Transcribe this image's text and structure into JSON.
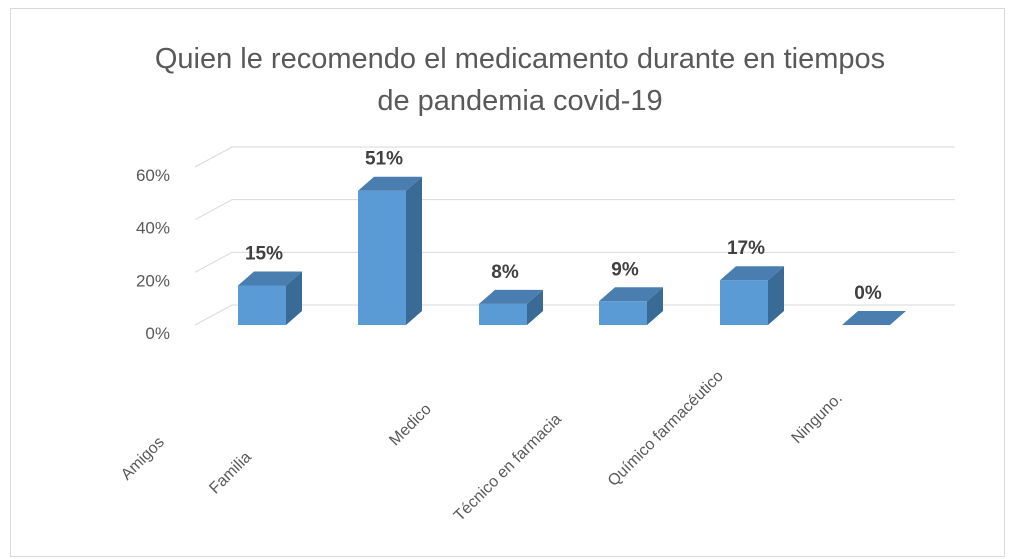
{
  "chart_data": {
    "type": "bar3d",
    "title": "Quien le recomendo el medicamento durante en tiempos de pandemia covid-19",
    "categories": [
      "Amigos",
      "Familia",
      "Medico",
      "Técnico en farmacia",
      "Químico farmacéutico",
      "Ninguno."
    ],
    "values": [
      15,
      51,
      8,
      9,
      17,
      0
    ],
    "value_labels": [
      "15%",
      "51%",
      "8%",
      "9%",
      "17%",
      "0%"
    ],
    "color": "#5b9bd5",
    "ylim": [
      0,
      60
    ],
    "yticks": [
      {
        "value": 0,
        "label": "0%"
      },
      {
        "value": 20,
        "label": "20%"
      },
      {
        "value": 40,
        "label": "40%"
      },
      {
        "value": 60,
        "label": "60%"
      }
    ],
    "grid": true
  }
}
